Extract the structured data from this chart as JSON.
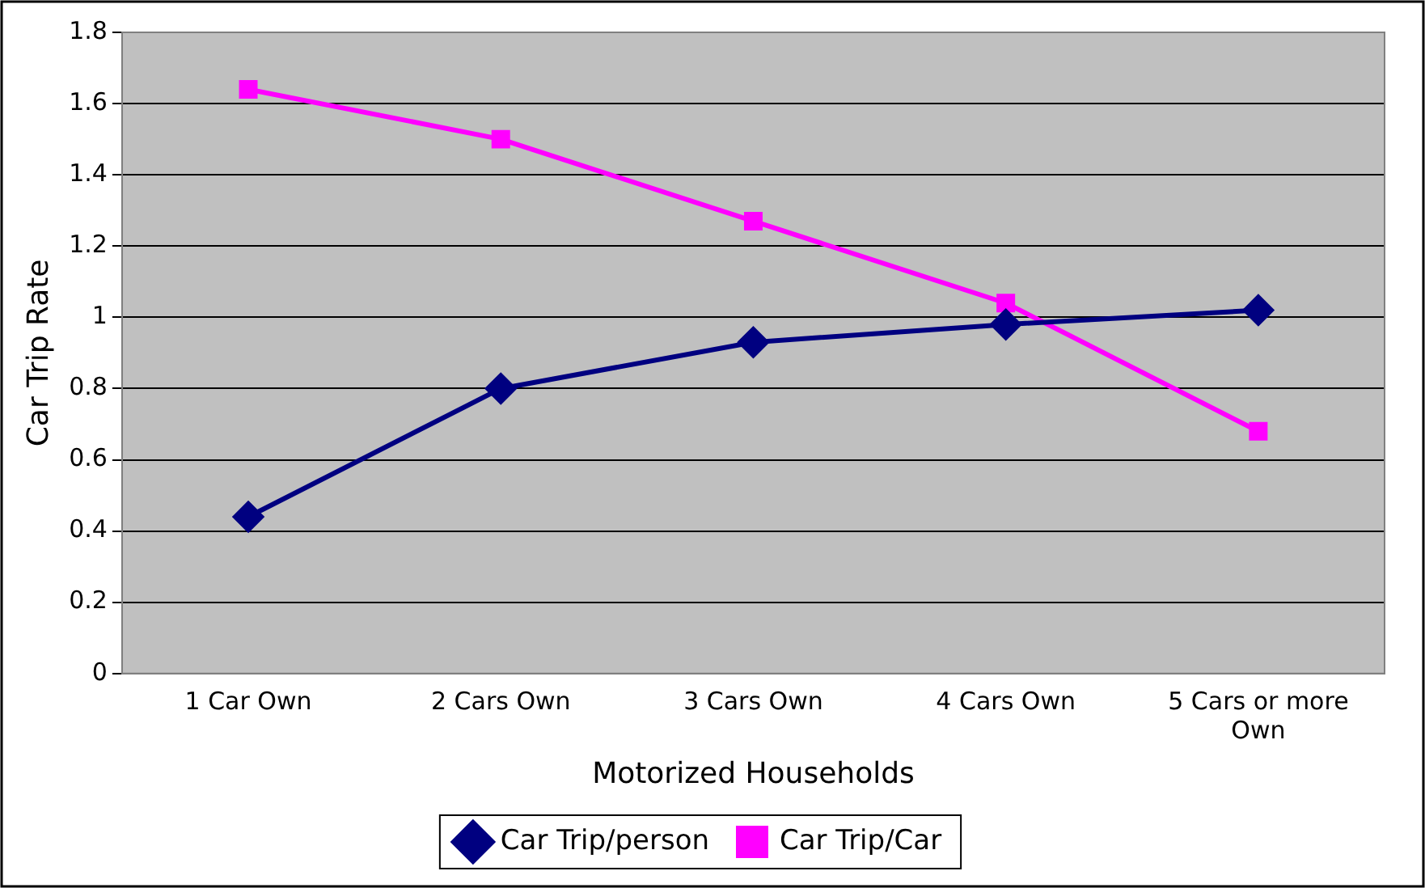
{
  "chart_data": {
    "type": "line",
    "xlabel": "Motorized Households",
    "ylabel": "Car Trip Rate",
    "categories": [
      "1 Car Own",
      "2 Cars Own",
      "3 Cars Own",
      "4 Cars Own",
      "5 Cars or more Own"
    ],
    "series": [
      {
        "name": "Car Trip/person",
        "color": "#000080",
        "values": [
          0.44,
          0.8,
          0.93,
          0.98,
          1.02
        ],
        "marker": "diamond"
      },
      {
        "name": "Car Trip/Car",
        "color": "#ff00ff",
        "values": [
          1.64,
          1.5,
          1.27,
          1.04,
          0.68
        ],
        "marker": "square"
      }
    ],
    "ylim": [
      0,
      1.8
    ],
    "yticks": [
      0,
      0.2,
      0.4,
      0.6,
      0.8,
      1,
      1.2,
      1.4,
      1.6,
      1.8
    ],
    "grid": "y",
    "legend": "bottom",
    "line_style": "solid"
  }
}
